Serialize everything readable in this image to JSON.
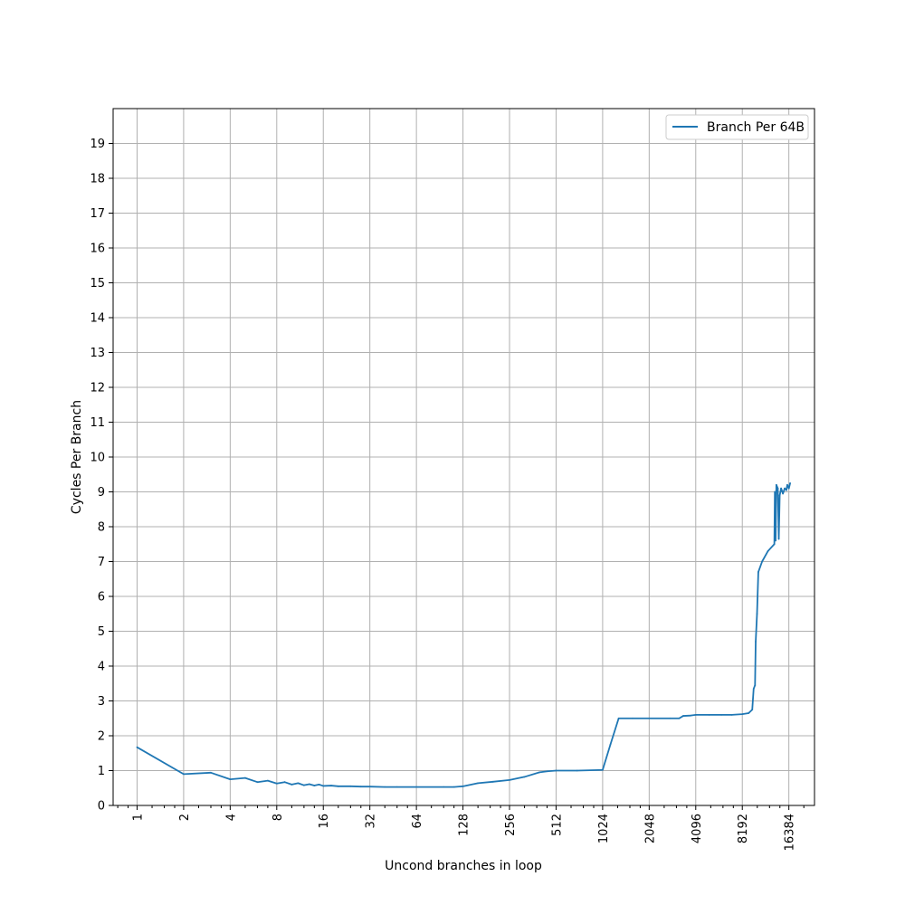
{
  "chart_data": {
    "type": "line",
    "title": "",
    "xlabel": "Uncond branches in loop",
    "ylabel": "Cycles Per Branch",
    "xscale": "log2",
    "xlim": [
      0.7,
      24000
    ],
    "ylim": [
      0,
      20
    ],
    "xticks": [
      1,
      2,
      4,
      8,
      16,
      32,
      64,
      128,
      256,
      512,
      1024,
      2048,
      4096,
      8192,
      16384
    ],
    "xtick_labels": [
      "1",
      "2",
      "4",
      "8",
      "16",
      "32",
      "64",
      "128",
      "256",
      "512",
      "1024",
      "2048",
      "4096",
      "8192",
      "16384"
    ],
    "yticks": [
      0,
      1,
      2,
      3,
      4,
      5,
      6,
      7,
      8,
      9,
      10,
      11,
      12,
      13,
      14,
      15,
      16,
      17,
      18,
      19
    ],
    "ytick_labels": [
      "0",
      "1",
      "2",
      "3",
      "4",
      "5",
      "6",
      "7",
      "8",
      "9",
      "10",
      "11",
      "12",
      "13",
      "14",
      "15",
      "16",
      "17",
      "18",
      "19"
    ],
    "grid": true,
    "legend_position": "top-right",
    "series": [
      {
        "name": "Branch Per 64B",
        "color": "#1f77b4",
        "points": [
          [
            1,
            1.67
          ],
          [
            2,
            0.9
          ],
          [
            3,
            0.94
          ],
          [
            4,
            0.75
          ],
          [
            5,
            0.79
          ],
          [
            6,
            0.67
          ],
          [
            7,
            0.71
          ],
          [
            8,
            0.63
          ],
          [
            9,
            0.67
          ],
          [
            10,
            0.6
          ],
          [
            11,
            0.64
          ],
          [
            12,
            0.58
          ],
          [
            13,
            0.61
          ],
          [
            14,
            0.57
          ],
          [
            15,
            0.6
          ],
          [
            16,
            0.56
          ],
          [
            18,
            0.57
          ],
          [
            20,
            0.55
          ],
          [
            24,
            0.55
          ],
          [
            28,
            0.54
          ],
          [
            32,
            0.54
          ],
          [
            40,
            0.53
          ],
          [
            48,
            0.53
          ],
          [
            64,
            0.53
          ],
          [
            96,
            0.53
          ],
          [
            112,
            0.53
          ],
          [
            128,
            0.55
          ],
          [
            160,
            0.64
          ],
          [
            200,
            0.68
          ],
          [
            256,
            0.73
          ],
          [
            320,
            0.82
          ],
          [
            400,
            0.95
          ],
          [
            450,
            0.98
          ],
          [
            512,
            1.0
          ],
          [
            700,
            1.0
          ],
          [
            1024,
            1.02
          ],
          [
            1150,
            1.75
          ],
          [
            1300,
            2.5
          ],
          [
            1600,
            2.5
          ],
          [
            2048,
            2.5
          ],
          [
            2800,
            2.5
          ],
          [
            3200,
            2.5
          ],
          [
            3400,
            2.57
          ],
          [
            3800,
            2.58
          ],
          [
            4096,
            2.6
          ],
          [
            5000,
            2.6
          ],
          [
            6000,
            2.6
          ],
          [
            7000,
            2.6
          ],
          [
            8192,
            2.62
          ],
          [
            9000,
            2.65
          ],
          [
            9500,
            2.75
          ],
          [
            9700,
            3.35
          ],
          [
            9900,
            3.45
          ],
          [
            10000,
            4.7
          ],
          [
            10200,
            5.5
          ],
          [
            10400,
            6.7
          ],
          [
            11000,
            7.0
          ],
          [
            12000,
            7.3
          ],
          [
            13200,
            7.5
          ],
          [
            13300,
            9.0
          ],
          [
            13450,
            7.6
          ],
          [
            13600,
            9.2
          ],
          [
            13900,
            9.1
          ],
          [
            14100,
            7.65
          ],
          [
            14300,
            8.9
          ],
          [
            14600,
            9.1
          ],
          [
            15000,
            8.95
          ],
          [
            15400,
            9.1
          ],
          [
            15800,
            9.05
          ],
          [
            16000,
            9.2
          ],
          [
            16384,
            9.1
          ],
          [
            16700,
            9.25
          ]
        ]
      }
    ]
  }
}
